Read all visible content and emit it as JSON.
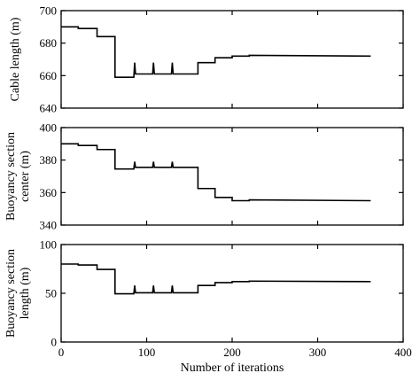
{
  "chart_data": [
    {
      "type": "line",
      "ylabel": "Cable length (m)",
      "xlim": [
        0,
        400
      ],
      "ylim": [
        640,
        700
      ],
      "xticks": [
        "0",
        "100",
        "200",
        "300",
        "400"
      ],
      "yticks": [
        "640",
        "660",
        "680",
        "700"
      ],
      "grid": false,
      "series": [
        {
          "x": [
            0,
            20,
            20,
            42,
            42,
            63,
            63,
            85,
            86,
            87,
            88,
            107,
            108,
            109,
            110,
            129,
            130,
            131,
            132,
            160,
            160,
            180,
            180,
            200,
            200,
            220,
            220,
            362
          ],
          "y": [
            690,
            690,
            689,
            689,
            684,
            684,
            659,
            659,
            668,
            661,
            661,
            661,
            668,
            661,
            661,
            661,
            668,
            661,
            661,
            661,
            668,
            668,
            671,
            671,
            672,
            672,
            672.5,
            672
          ]
        }
      ]
    },
    {
      "type": "line",
      "ylabel": "Buoyancy section center (m)",
      "ylabel_lines": [
        "Buoyancy section",
        "center (m)"
      ],
      "xlim": [
        0,
        400
      ],
      "ylim": [
        340,
        400
      ],
      "xticks": [
        "0",
        "100",
        "200",
        "300",
        "400"
      ],
      "yticks": [
        "340",
        "360",
        "380",
        "400"
      ],
      "grid": false,
      "series": [
        {
          "x": [
            0,
            20,
            20,
            42,
            42,
            63,
            63,
            85,
            86,
            87,
            88,
            107,
            108,
            109,
            110,
            129,
            130,
            131,
            132,
            160,
            160,
            180,
            180,
            200,
            200,
            220,
            220,
            362
          ],
          "y": [
            390,
            390,
            389,
            389,
            386.5,
            386.5,
            374.5,
            374.5,
            379,
            375.5,
            375.5,
            375.5,
            379,
            375.5,
            375.5,
            375.5,
            379,
            375.5,
            375.5,
            375.5,
            362.5,
            362.5,
            357,
            357,
            355,
            355,
            355.5,
            355
          ]
        }
      ]
    },
    {
      "type": "line",
      "ylabel": "Buoyancy section length (m)",
      "ylabel_lines": [
        "Buoyancy section",
        "length (m)"
      ],
      "xlabel": "Number of iterations",
      "xlim": [
        0,
        400
      ],
      "ylim": [
        0,
        100
      ],
      "xticks": [
        "0",
        "100",
        "200",
        "300",
        "400"
      ],
      "yticks": [
        "0",
        "50",
        "100"
      ],
      "grid": false,
      "series": [
        {
          "x": [
            0,
            20,
            20,
            42,
            42,
            63,
            63,
            85,
            86,
            87,
            88,
            107,
            108,
            109,
            110,
            129,
            130,
            131,
            132,
            160,
            160,
            180,
            180,
            200,
            200,
            220,
            220,
            362
          ],
          "y": [
            80,
            80,
            79,
            79,
            74.5,
            74.5,
            49.5,
            49.5,
            58,
            50.5,
            50.5,
            50.5,
            58,
            50.5,
            50.5,
            50.5,
            58,
            50.5,
            50.5,
            50.5,
            58,
            58,
            61,
            61,
            62,
            62,
            62.5,
            62
          ]
        }
      ]
    }
  ]
}
